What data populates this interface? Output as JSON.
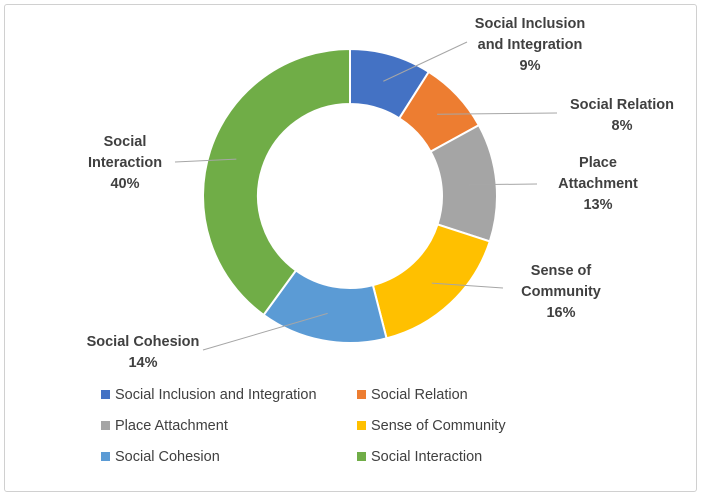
{
  "chart_data": {
    "type": "pie",
    "variant": "donut",
    "title": "",
    "series": [
      {
        "name": "Social Inclusion and Integration",
        "label_lines": [
          "Social Inclusion",
          "and Integration"
        ],
        "value": 9,
        "value_label": "9%",
        "color": "#4472C4"
      },
      {
        "name": "Social Relation",
        "label_lines": [
          "Social Relation"
        ],
        "value": 8,
        "value_label": "8%",
        "color": "#ED7D31"
      },
      {
        "name": "Place Attachment",
        "label_lines": [
          "Place",
          "Attachment"
        ],
        "value": 13,
        "value_label": "13%",
        "color": "#A5A5A5"
      },
      {
        "name": "Sense of Community",
        "label_lines": [
          "Sense of",
          "Community"
        ],
        "value": 16,
        "value_label": "16%",
        "color": "#FFC000"
      },
      {
        "name": "Social Cohesion",
        "label_lines": [
          "Social Cohesion"
        ],
        "value": 14,
        "value_label": "14%",
        "color": "#5B9BD5"
      },
      {
        "name": "Social Interaction",
        "label_lines": [
          "Social",
          "Interaction"
        ],
        "value": 40,
        "value_label": "40%",
        "color": "#70AD47"
      }
    ],
    "legend_position": "bottom"
  }
}
